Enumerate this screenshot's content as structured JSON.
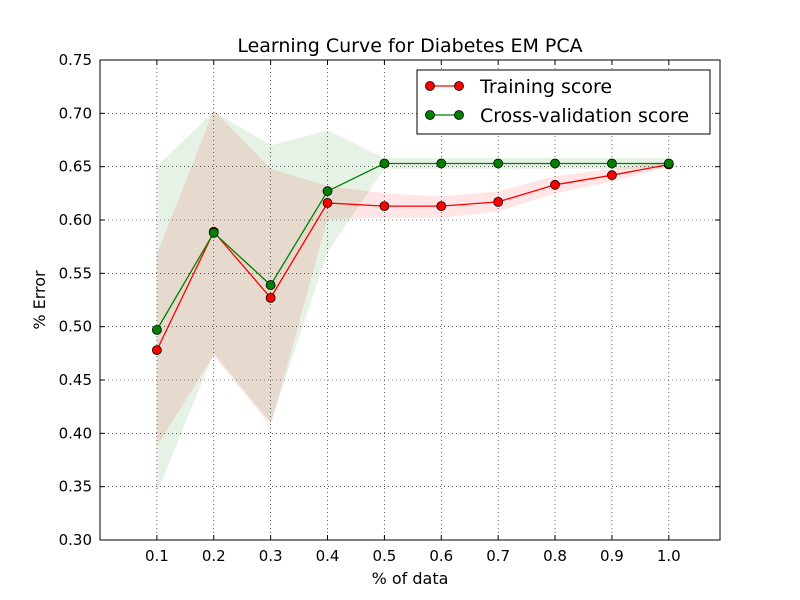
{
  "chart_data": {
    "type": "line",
    "title": "Learning Curve for Diabetes EM PCA",
    "xlabel": "% of data",
    "ylabel": "% Error",
    "xlim": [
      0.0,
      1.09
    ],
    "ylim": [
      0.3,
      0.75
    ],
    "xticks": [
      "0.1",
      "0.2",
      "0.3",
      "0.4",
      "0.5",
      "0.6",
      "0.7",
      "0.8",
      "0.9",
      "1.0"
    ],
    "yticks": [
      "0.30",
      "0.35",
      "0.40",
      "0.45",
      "0.50",
      "0.55",
      "0.60",
      "0.65",
      "0.70",
      "0.75"
    ],
    "grid": true,
    "legend_position": "top-right",
    "x": [
      0.1,
      0.2,
      0.3,
      0.4,
      0.5,
      0.6,
      0.7,
      0.8,
      0.9,
      1.0
    ],
    "series": [
      {
        "name": "Training score",
        "color": "#ff0000",
        "values": [
          0.478,
          0.589,
          0.527,
          0.616,
          0.613,
          0.613,
          0.617,
          0.633,
          0.642,
          0.652
        ],
        "band_low": [
          0.388,
          0.473,
          0.407,
          0.601,
          0.602,
          0.602,
          0.608,
          0.625,
          0.636,
          0.65
        ],
        "band_high": [
          0.568,
          0.703,
          0.648,
          0.632,
          0.625,
          0.622,
          0.627,
          0.641,
          0.648,
          0.655
        ]
      },
      {
        "name": "Cross-validation score",
        "color": "#008000",
        "values": [
          0.497,
          0.588,
          0.539,
          0.627,
          0.653,
          0.653,
          0.653,
          0.653,
          0.653,
          0.653
        ],
        "band_low": [
          0.344,
          0.475,
          0.41,
          0.57,
          0.648,
          0.648,
          0.648,
          0.648,
          0.648,
          0.648
        ],
        "band_high": [
          0.65,
          0.702,
          0.67,
          0.684,
          0.658,
          0.658,
          0.658,
          0.658,
          0.658,
          0.658
        ]
      }
    ]
  }
}
